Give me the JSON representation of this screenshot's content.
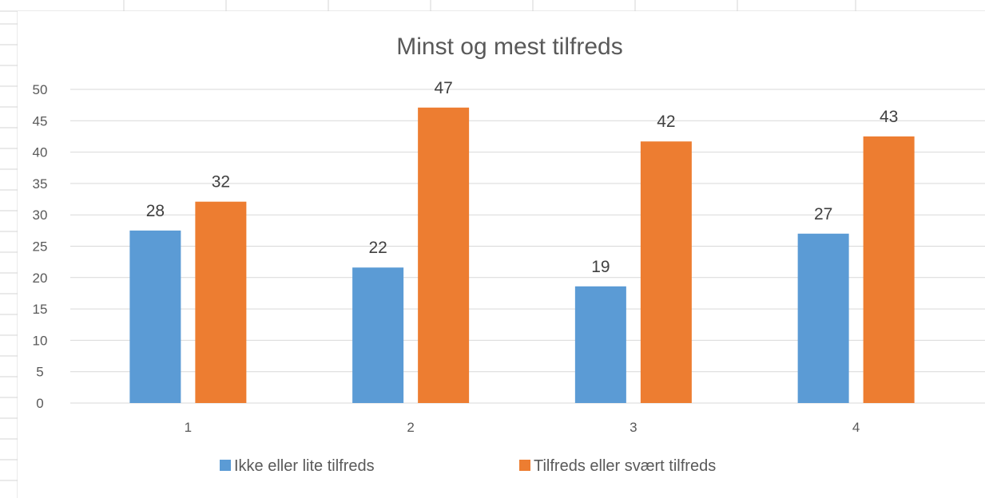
{
  "chart_data": {
    "type": "bar",
    "title": "Minst og mest tilfreds",
    "categories": [
      "1",
      "2",
      "3",
      "4"
    ],
    "series": [
      {
        "name": "Ikke eller lite tilfreds",
        "values": [
          27.5,
          21.6,
          18.6,
          27
        ],
        "labels": [
          "28",
          "22",
          "19",
          "27"
        ],
        "color": "#5B9BD5"
      },
      {
        "name": "Tilfreds eller svært tilfreds",
        "values": [
          32.1,
          47.1,
          41.7,
          42.5
        ],
        "labels": [
          "32",
          "47",
          "42",
          "43"
        ],
        "color": "#ED7D31"
      }
    ],
    "ylim": [
      0,
      50
    ],
    "yticks": [
      "0",
      "5",
      "10",
      "15",
      "20",
      "25",
      "30",
      "35",
      "40",
      "45",
      "50"
    ],
    "ytick_values": [
      0,
      5,
      10,
      15,
      20,
      25,
      30,
      35,
      40,
      45,
      50
    ],
    "grid": true,
    "legend_position": "bottom",
    "xlabel": "",
    "ylabel": ""
  },
  "colors": {
    "gridline": "#d9d9d9",
    "sheet_gridline": "#d4d4d4",
    "text": "#595959"
  }
}
